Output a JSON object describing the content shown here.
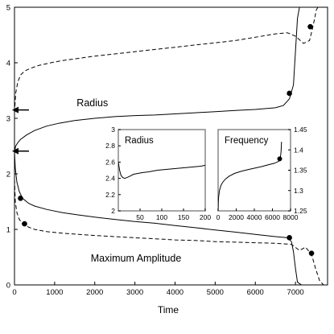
{
  "chart_data": {
    "type": "line",
    "title": "",
    "xlabel": "Time",
    "ylabel": "",
    "xlim": [
      0,
      7800
    ],
    "ylim": [
      0,
      5
    ],
    "x_ticks": [
      0,
      1000,
      2000,
      3000,
      4000,
      5000,
      6000,
      7000
    ],
    "y_ticks": [
      0,
      1,
      2,
      3,
      4,
      5
    ],
    "grid": false,
    "legend": "none",
    "annotations": [
      {
        "text": "Radius",
        "x": 1550,
        "y": 3.22
      },
      {
        "text": "Maximum Amplitude",
        "x": 1900,
        "y": 0.42
      }
    ],
    "arrows": [
      {
        "x": 120,
        "y": 3.15
      },
      {
        "x": 120,
        "y": 2.41
      }
    ],
    "series": [
      {
        "style": "solid",
        "x": [
          0,
          30,
          80,
          150,
          300,
          500,
          800,
          1100,
          1500,
          2000,
          2500,
          3000,
          3500,
          4000,
          4500,
          5000,
          5500,
          6000,
          6500,
          6700,
          6850,
          6950,
          7000,
          7050,
          7100,
          7150
        ],
        "y": [
          2.4,
          2.5,
          2.56,
          2.62,
          2.7,
          2.78,
          2.86,
          2.91,
          2.96,
          3.0,
          3.03,
          3.05,
          3.06,
          3.08,
          3.1,
          3.12,
          3.14,
          3.16,
          3.19,
          3.23,
          3.35,
          3.6,
          4.2,
          4.8,
          5.0,
          5.0
        ]
      },
      {
        "style": "dashed",
        "x": [
          0,
          30,
          80,
          150,
          250,
          400,
          600,
          900,
          1200,
          1600,
          2000,
          2500,
          3000,
          3500,
          4000,
          4500,
          5000,
          5500,
          6000,
          6500,
          6800,
          7000,
          7200,
          7350,
          7420,
          7480,
          7520,
          7560
        ],
        "y": [
          3.1,
          3.45,
          3.65,
          3.78,
          3.85,
          3.9,
          3.95,
          4.0,
          4.04,
          4.08,
          4.12,
          4.16,
          4.2,
          4.24,
          4.28,
          4.32,
          4.36,
          4.4,
          4.46,
          4.52,
          4.54,
          4.48,
          4.35,
          4.4,
          4.6,
          4.8,
          4.95,
          5.0
        ]
      },
      {
        "style": "solid",
        "x": [
          0,
          20,
          60,
          120,
          200,
          350,
          500,
          800,
          1200,
          1600,
          2000,
          2500,
          3000,
          3500,
          4000,
          4500,
          5000,
          5500,
          6000,
          6500,
          6800,
          6900,
          6950,
          7000,
          7050,
          7150
        ],
        "y": [
          2.4,
          2.1,
          1.85,
          1.68,
          1.56,
          1.47,
          1.42,
          1.36,
          1.3,
          1.26,
          1.22,
          1.18,
          1.14,
          1.11,
          1.07,
          1.03,
          0.99,
          0.95,
          0.91,
          0.87,
          0.85,
          0.78,
          0.6,
          0.3,
          0.05,
          0.0
        ]
      },
      {
        "style": "dashed",
        "x": [
          0,
          20,
          60,
          120,
          200,
          350,
          500,
          800,
          1200,
          1600,
          2000,
          2500,
          3000,
          3500,
          4000,
          4500,
          5000,
          5500,
          6000,
          6500,
          6900,
          7100,
          7250,
          7400,
          7500,
          7600,
          7700
        ],
        "y": [
          1.9,
          1.5,
          1.3,
          1.18,
          1.1,
          1.04,
          1.0,
          0.96,
          0.93,
          0.91,
          0.89,
          0.87,
          0.85,
          0.83,
          0.81,
          0.8,
          0.78,
          0.77,
          0.76,
          0.75,
          0.73,
          0.62,
          0.68,
          0.55,
          0.3,
          0.08,
          0.0
        ]
      }
    ],
    "markers": [
      {
        "x": 6850,
        "y": 3.45
      },
      {
        "x": 7370,
        "y": 4.65
      },
      {
        "x": 150,
        "y": 1.56
      },
      {
        "x": 250,
        "y": 1.1
      },
      {
        "x": 6850,
        "y": 0.85
      },
      {
        "x": 7400,
        "y": 0.57
      }
    ],
    "insets": [
      {
        "title": "Radius",
        "xlim": [
          0,
          200
        ],
        "ylim": [
          2.0,
          3.0
        ],
        "x_ticks": [
          50,
          100,
          150,
          200
        ],
        "y_ticks": [
          2.0,
          2.2,
          2.4,
          2.6,
          2.8,
          3.0
        ],
        "y_tick_labels": [
          "2",
          "2.2",
          "2.4",
          "2.6",
          "2.8",
          "3"
        ],
        "y_axis_side": "left",
        "series": [
          {
            "style": "solid",
            "x": [
              0,
              3,
              6,
              10,
              15,
              20,
              28,
              35,
              45,
              55,
              70,
              90,
              110,
              130,
              150,
              170,
              190,
              200
            ],
            "y": [
              2.6,
              2.5,
              2.44,
              2.41,
              2.4,
              2.41,
              2.43,
              2.45,
              2.46,
              2.47,
              2.48,
              2.5,
              2.51,
              2.52,
              2.53,
              2.54,
              2.55,
              2.56
            ]
          }
        ],
        "markers": []
      },
      {
        "title": "Frequency",
        "xlim": [
          0,
          8000
        ],
        "ylim": [
          1.25,
          1.45
        ],
        "x_ticks": [
          0,
          2000,
          4000,
          6000,
          8000
        ],
        "y_ticks": [
          1.25,
          1.3,
          1.35,
          1.4,
          1.45
        ],
        "y_tick_labels": [
          "1.25",
          "1.3",
          "1.35",
          "1.4",
          "1.45"
        ],
        "y_axis_side": "right",
        "series": [
          {
            "style": "solid",
            "x": [
              0,
              20,
              60,
              150,
              300,
              500,
              800,
              1200,
              1800,
              2500,
              3200,
              4000,
              4800,
              5500,
              6200,
              6700,
              6850,
              6950,
              7000
            ],
            "y": [
              1.25,
              1.27,
              1.285,
              1.3,
              1.312,
              1.32,
              1.328,
              1.335,
              1.342,
              1.347,
              1.351,
              1.355,
              1.359,
              1.363,
              1.367,
              1.372,
              1.378,
              1.395,
              1.42
            ]
          }
        ],
        "markers": [
          {
            "x": 6800,
            "y": 1.378
          }
        ]
      }
    ]
  }
}
